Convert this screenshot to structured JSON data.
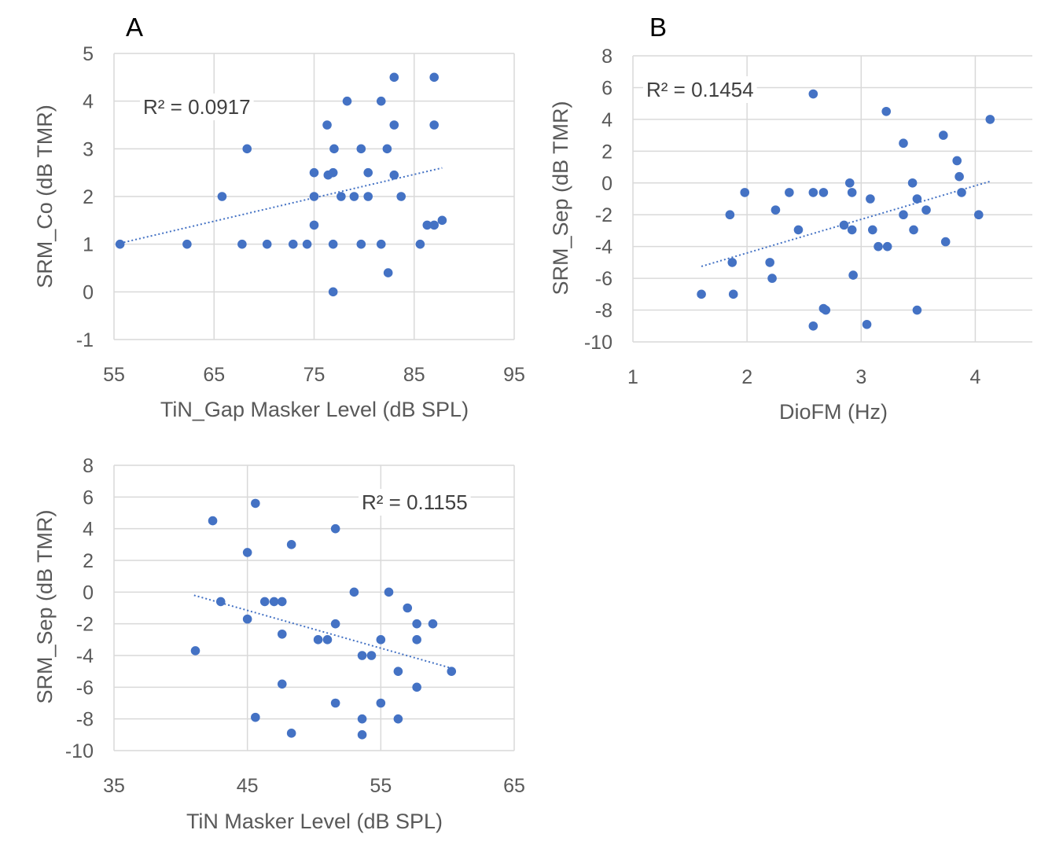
{
  "colors": {
    "points": "#4472c4",
    "trendline": "#4472c4",
    "grid": "#d9d9d9",
    "text": "#595959"
  },
  "chart_data": [
    {
      "type": "scatter",
      "panel": "A",
      "xlabel": "TiN_Gap Masker Level (dB SPL)",
      "ylabel": "SRM_Co (dB TMR)",
      "xlim": [
        55,
        95
      ],
      "ylim": [
        -1,
        5
      ],
      "xticks": [
        55,
        65,
        75,
        85,
        95
      ],
      "yticks": [
        -1,
        0,
        1,
        2,
        3,
        4,
        5
      ],
      "grid": true,
      "annotation": "R² = 0.0917",
      "r_squared": 0.0917,
      "trendline": {
        "type": "linear",
        "x": [
          55.6,
          87.8
        ],
        "y": [
          1.02,
          2.6
        ]
      },
      "points": [
        {
          "x": 55.6,
          "y": 1.0
        },
        {
          "x": 62.3,
          "y": 1.0
        },
        {
          "x": 65.8,
          "y": 2.0
        },
        {
          "x": 67.8,
          "y": 1.0
        },
        {
          "x": 68.3,
          "y": 3.0
        },
        {
          "x": 70.3,
          "y": 1.0
        },
        {
          "x": 72.9,
          "y": 1.0
        },
        {
          "x": 74.3,
          "y": 1.0
        },
        {
          "x": 75.0,
          "y": 2.5
        },
        {
          "x": 75.0,
          "y": 2.0
        },
        {
          "x": 75.0,
          "y": 1.4
        },
        {
          "x": 76.3,
          "y": 3.5
        },
        {
          "x": 76.4,
          "y": 2.45
        },
        {
          "x": 76.9,
          "y": 2.5
        },
        {
          "x": 77.0,
          "y": 3.0
        },
        {
          "x": 76.9,
          "y": 1.0
        },
        {
          "x": 76.9,
          "y": 0.0
        },
        {
          "x": 77.7,
          "y": 2.0
        },
        {
          "x": 78.3,
          "y": 4.0
        },
        {
          "x": 79.0,
          "y": 2.0
        },
        {
          "x": 79.7,
          "y": 3.0
        },
        {
          "x": 79.7,
          "y": 1.0
        },
        {
          "x": 80.4,
          "y": 2.5
        },
        {
          "x": 80.4,
          "y": 2.0
        },
        {
          "x": 81.7,
          "y": 4.0
        },
        {
          "x": 81.7,
          "y": 1.0
        },
        {
          "x": 82.3,
          "y": 3.0
        },
        {
          "x": 82.4,
          "y": 0.4
        },
        {
          "x": 83.0,
          "y": 4.5
        },
        {
          "x": 83.0,
          "y": 3.5
        },
        {
          "x": 83.0,
          "y": 2.45
        },
        {
          "x": 83.7,
          "y": 2.0
        },
        {
          "x": 85.6,
          "y": 1.0
        },
        {
          "x": 86.3,
          "y": 1.4
        },
        {
          "x": 87.0,
          "y": 4.5
        },
        {
          "x": 87.0,
          "y": 3.5
        },
        {
          "x": 87.0,
          "y": 1.4
        },
        {
          "x": 87.8,
          "y": 1.5
        }
      ]
    },
    {
      "type": "scatter",
      "panel": "B",
      "xlabel": "DioFM (Hz)",
      "ylabel": "SRM_Sep (dB TMR)",
      "xlim": [
        1,
        4.5
      ],
      "ylim": [
        -10,
        8
      ],
      "xticks": [
        1,
        2,
        3,
        4
      ],
      "yticks": [
        -10,
        -8,
        -6,
        -4,
        -2,
        0,
        2,
        4,
        6,
        8
      ],
      "grid": true,
      "annotation": "R² = 0.1454",
      "r_squared": 0.1454,
      "trendline": {
        "type": "linear",
        "x": [
          1.6,
          4.13
        ],
        "y": [
          -5.25,
          0.1
        ]
      },
      "points": [
        {
          "x": 1.6,
          "y": -7.0
        },
        {
          "x": 1.85,
          "y": -2.0
        },
        {
          "x": 1.87,
          "y": -5.0
        },
        {
          "x": 1.88,
          "y": -7.0
        },
        {
          "x": 1.98,
          "y": -0.6
        },
        {
          "x": 2.2,
          "y": -5.0
        },
        {
          "x": 2.22,
          "y": -6.0
        },
        {
          "x": 2.25,
          "y": -1.7
        },
        {
          "x": 2.37,
          "y": -0.6
        },
        {
          "x": 2.45,
          "y": -2.95
        },
        {
          "x": 2.58,
          "y": 5.6
        },
        {
          "x": 2.58,
          "y": -0.6
        },
        {
          "x": 2.58,
          "y": -9.0
        },
        {
          "x": 2.67,
          "y": -0.6
        },
        {
          "x": 2.67,
          "y": -7.9
        },
        {
          "x": 2.69,
          "y": -8.0
        },
        {
          "x": 2.85,
          "y": -2.65
        },
        {
          "x": 2.9,
          "y": 0.0
        },
        {
          "x": 2.92,
          "y": -0.6
        },
        {
          "x": 2.92,
          "y": -2.95
        },
        {
          "x": 2.93,
          "y": -5.8
        },
        {
          "x": 3.05,
          "y": -8.9
        },
        {
          "x": 3.08,
          "y": -1.0
        },
        {
          "x": 3.1,
          "y": -2.95
        },
        {
          "x": 3.15,
          "y": -4.0
        },
        {
          "x": 3.22,
          "y": 4.5
        },
        {
          "x": 3.23,
          "y": -4.0
        },
        {
          "x": 3.37,
          "y": 2.5
        },
        {
          "x": 3.37,
          "y": -2.0
        },
        {
          "x": 3.45,
          "y": 0.0
        },
        {
          "x": 3.46,
          "y": -2.95
        },
        {
          "x": 3.49,
          "y": -1.0
        },
        {
          "x": 3.49,
          "y": -8.0
        },
        {
          "x": 3.57,
          "y": -1.7
        },
        {
          "x": 3.72,
          "y": 3.0
        },
        {
          "x": 3.74,
          "y": -3.7
        },
        {
          "x": 3.84,
          "y": 1.4
        },
        {
          "x": 3.86,
          "y": 0.4
        },
        {
          "x": 3.88,
          "y": -0.6
        },
        {
          "x": 4.03,
          "y": -2.0
        },
        {
          "x": 4.13,
          "y": 4.0
        }
      ]
    },
    {
      "type": "scatter",
      "panel": "",
      "xlabel": "TiN Masker Level (dB SPL)",
      "ylabel": "SRM_Sep (dB TMR)",
      "xlim": [
        35,
        65
      ],
      "ylim": [
        -10,
        8
      ],
      "xticks": [
        35,
        45,
        55,
        65
      ],
      "yticks": [
        -10,
        -8,
        -6,
        -4,
        -2,
        0,
        2,
        4,
        6,
        8
      ],
      "grid": true,
      "annotation": "R² = 0.1155",
      "r_squared": 0.1155,
      "trendline": {
        "type": "linear",
        "x": [
          41.0,
          60.3
        ],
        "y": [
          -0.2,
          -4.8
        ]
      },
      "points": [
        {
          "x": 41.1,
          "y": -3.7
        },
        {
          "x": 42.4,
          "y": 4.5
        },
        {
          "x": 43.0,
          "y": -0.6
        },
        {
          "x": 45.0,
          "y": 2.5
        },
        {
          "x": 45.0,
          "y": -1.7
        },
        {
          "x": 45.6,
          "y": 5.6
        },
        {
          "x": 45.6,
          "y": -7.9
        },
        {
          "x": 46.3,
          "y": -0.6
        },
        {
          "x": 47.0,
          "y": -0.6
        },
        {
          "x": 47.6,
          "y": -0.6
        },
        {
          "x": 47.6,
          "y": -2.65
        },
        {
          "x": 47.6,
          "y": -5.8
        },
        {
          "x": 48.3,
          "y": 3.0
        },
        {
          "x": 48.3,
          "y": -8.9
        },
        {
          "x": 50.3,
          "y": -3.0
        },
        {
          "x": 51.0,
          "y": -3.0
        },
        {
          "x": 51.6,
          "y": 4.0
        },
        {
          "x": 51.6,
          "y": -2.0
        },
        {
          "x": 51.6,
          "y": -7.0
        },
        {
          "x": 53.0,
          "y": 0.0
        },
        {
          "x": 53.6,
          "y": -4.0
        },
        {
          "x": 53.6,
          "y": -8.0
        },
        {
          "x": 53.6,
          "y": -9.0
        },
        {
          "x": 54.3,
          "y": -4.0
        },
        {
          "x": 55.0,
          "y": -3.0
        },
        {
          "x": 55.0,
          "y": -7.0
        },
        {
          "x": 55.6,
          "y": 0.0
        },
        {
          "x": 56.3,
          "y": -5.0
        },
        {
          "x": 56.3,
          "y": -8.0
        },
        {
          "x": 57.0,
          "y": -1.0
        },
        {
          "x": 57.7,
          "y": -2.0
        },
        {
          "x": 57.7,
          "y": -3.0
        },
        {
          "x": 57.7,
          "y": -6.0
        },
        {
          "x": 58.9,
          "y": -2.0
        },
        {
          "x": 60.3,
          "y": -5.0
        }
      ]
    }
  ]
}
